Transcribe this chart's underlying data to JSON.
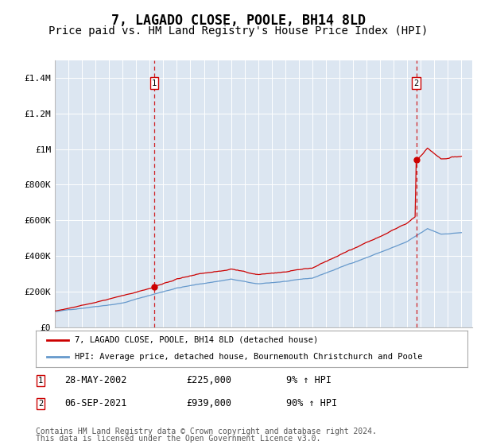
{
  "title": "7, LAGADO CLOSE, POOLE, BH14 8LD",
  "subtitle": "Price paid vs. HM Land Registry's House Price Index (HPI)",
  "title_fontsize": 12,
  "subtitle_fontsize": 10,
  "plot_bg_color": "#dce6f1",
  "fig_bg_color": "#ffffff",
  "ylim": [
    0,
    1500000
  ],
  "yticks": [
    0,
    200000,
    400000,
    600000,
    800000,
    1000000,
    1200000,
    1400000
  ],
  "ytick_labels": [
    "£0",
    "£200K",
    "£400K",
    "£600K",
    "£800K",
    "£1M",
    "£1.2M",
    "£1.4M"
  ],
  "year_start": 1995,
  "year_end": 2025,
  "sale1_date": "28-MAY-2002",
  "sale1_price": 225000,
  "sale1_price_str": "£225,000",
  "sale1_pct": "9% ↑ HPI",
  "sale2_date": "06-SEP-2021",
  "sale2_price": 939000,
  "sale2_price_str": "£939,000",
  "sale2_pct": "90% ↑ HPI",
  "legend_label1": "7, LAGADO CLOSE, POOLE, BH14 8LD (detached house)",
  "legend_label2": "HPI: Average price, detached house, Bournemouth Christchurch and Poole",
  "red_color": "#cc0000",
  "blue_color": "#6699cc",
  "footnote_line1": "Contains HM Land Registry data © Crown copyright and database right 2024.",
  "footnote_line2": "This data is licensed under the Open Government Licence v3.0.",
  "footnote_fontsize": 7,
  "font_family": "DejaVu Sans Mono"
}
